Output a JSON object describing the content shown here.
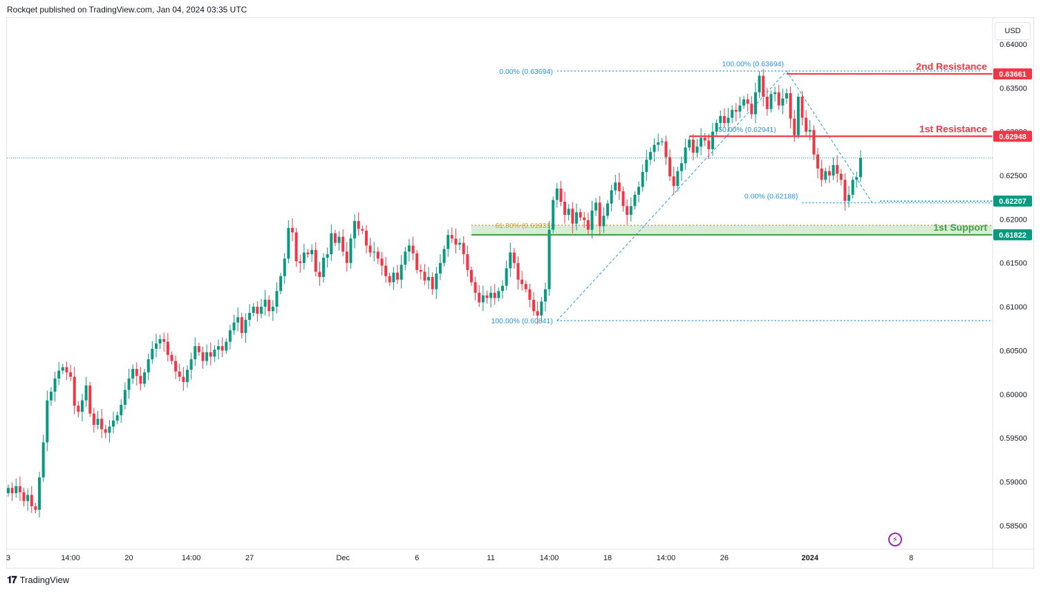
{
  "header": {
    "publisher_text": "Rockqet published on TradingView.com, Jan 04, 2024 03:35 UTC"
  },
  "currency_button": "USD",
  "footer": {
    "brand": "TradingView",
    "logo_glyph": "𝟏𝟕"
  },
  "chart_data": {
    "type": "candlestick",
    "ylim": [
      0.5823,
      0.643
    ],
    "y_ticks": [
      "0.64000",
      "0.63500",
      "0.63000",
      "0.62500",
      "0.62000",
      "0.61500",
      "0.61000",
      "0.60500",
      "0.60000",
      "0.59500",
      "0.59000",
      "0.58500"
    ],
    "y_tick_values": [
      0.64,
      0.635,
      0.63,
      0.625,
      0.62,
      0.615,
      0.61,
      0.605,
      0.6,
      0.595,
      0.59,
      0.585
    ],
    "x_ticks": [
      {
        "label": "3",
        "i": 0
      },
      {
        "label": "14:00",
        "i": 16
      },
      {
        "label": "20",
        "i": 31
      },
      {
        "label": "14:00",
        "i": 47
      },
      {
        "label": "27",
        "i": 62
      },
      {
        "label": "Dec",
        "i": 86
      },
      {
        "label": "6",
        "i": 105
      },
      {
        "label": "11",
        "i": 124
      },
      {
        "label": "14:00",
        "i": 139
      },
      {
        "label": "18",
        "i": 154
      },
      {
        "label": "14:00",
        "i": 169
      },
      {
        "label": "26",
        "i": 184
      },
      {
        "label": "2024",
        "i": 206
      },
      {
        "label": "8",
        "i": 232
      }
    ],
    "closes": [
      0.5893,
      0.5887,
      0.5895,
      0.5888,
      0.5878,
      0.5885,
      0.5872,
      0.5868,
      0.5905,
      0.5945,
      0.5993,
      0.6003,
      0.6018,
      0.6027,
      0.6031,
      0.6025,
      0.602,
      0.5987,
      0.598,
      0.5993,
      0.601,
      0.5978,
      0.5965,
      0.5972,
      0.596,
      0.5956,
      0.5963,
      0.597,
      0.5976,
      0.5988,
      0.6005,
      0.6018,
      0.6029,
      0.6021,
      0.6012,
      0.6025,
      0.604,
      0.6052,
      0.6058,
      0.6063,
      0.606,
      0.6045,
      0.6038,
      0.6026,
      0.602,
      0.6014,
      0.6028,
      0.604,
      0.6055,
      0.6048,
      0.6038,
      0.6048,
      0.6043,
      0.6051,
      0.6055,
      0.605,
      0.606,
      0.6073,
      0.6082,
      0.6088,
      0.607,
      0.6085,
      0.6093,
      0.61,
      0.6092,
      0.61,
      0.6108,
      0.6095,
      0.61,
      0.6118,
      0.6135,
      0.6155,
      0.619,
      0.6185,
      0.6152,
      0.615,
      0.6162,
      0.616,
      0.6165,
      0.614,
      0.6134,
      0.6156,
      0.616,
      0.6184,
      0.6173,
      0.618,
      0.6163,
      0.615,
      0.6178,
      0.6198,
      0.6189,
      0.6187,
      0.617,
      0.6162,
      0.6163,
      0.6155,
      0.6147,
      0.6135,
      0.6128,
      0.6139,
      0.6131,
      0.6148,
      0.6163,
      0.617,
      0.6161,
      0.6142,
      0.614,
      0.613,
      0.6134,
      0.612,
      0.6138,
      0.615,
      0.6166,
      0.6182,
      0.6178,
      0.6171,
      0.6173,
      0.616,
      0.6142,
      0.6128,
      0.6116,
      0.6105,
      0.6113,
      0.611,
      0.6116,
      0.611,
      0.6118,
      0.6124,
      0.6144,
      0.6162,
      0.615,
      0.6131,
      0.6126,
      0.612,
      0.6108,
      0.6095,
      0.609,
      0.6106,
      0.612,
      0.6188,
      0.6222,
      0.6235,
      0.622,
      0.6205,
      0.6212,
      0.6195,
      0.6208,
      0.6202,
      0.6199,
      0.6188,
      0.621,
      0.6219,
      0.6192,
      0.6204,
      0.6218,
      0.6233,
      0.6242,
      0.6232,
      0.6215,
      0.6205,
      0.6215,
      0.6228,
      0.6237,
      0.6254,
      0.6268,
      0.6277,
      0.6285,
      0.6288,
      0.6289,
      0.6271,
      0.6249,
      0.6238,
      0.6255,
      0.6264,
      0.6282,
      0.6291,
      0.6276,
      0.6283,
      0.6293,
      0.629,
      0.628,
      0.63,
      0.631,
      0.6318,
      0.631,
      0.6316,
      0.6325,
      0.6323,
      0.633,
      0.6337,
      0.6332,
      0.632,
      0.6345,
      0.6364,
      0.634,
      0.6326,
      0.6343,
      0.6345,
      0.633,
      0.6338,
      0.6344,
      0.6315,
      0.6296,
      0.634,
      0.6316,
      0.63,
      0.6302,
      0.6274,
      0.6258,
      0.6245,
      0.6255,
      0.625,
      0.6262,
      0.6252,
      0.6245,
      0.6221,
      0.6228,
      0.6245,
      0.6248,
      0.627
    ]
  },
  "price_labels": [
    {
      "text": "0.63661",
      "value": 0.63661,
      "color": "#f23645"
    },
    {
      "text": "0.62948",
      "value": 0.62948,
      "color": "#f23645"
    },
    {
      "text": "0.62207",
      "value": 0.62207,
      "color": "#089981"
    },
    {
      "text": "0.61822",
      "value": 0.61822,
      "color": "#089981"
    }
  ],
  "levels": {
    "resistance_2": {
      "label": "2nd Resistance",
      "value": 0.63661,
      "color": "#f23645"
    },
    "resistance_1": {
      "label": "1st Resistance",
      "value": 0.62948,
      "color": "#f23645"
    },
    "support_1": {
      "label": "1st Support",
      "value": 0.61822,
      "color": "#43a047"
    }
  },
  "fib_levels": [
    {
      "label": "0.00% (0.63694)",
      "value": 0.63694,
      "i_start": 132,
      "i_end": 232
    },
    {
      "label": "100.00% (0.63694)",
      "value": 0.63694,
      "i_start": 196
    },
    {
      "label": "50.00% (0.62941)",
      "value": 0.62941,
      "i_start": 175
    },
    {
      "label": "61.80% (0.61931)",
      "value": 0.61931,
      "i_start": 110,
      "i_end": 232
    },
    {
      "label": "100.00% (0.60841)",
      "value": 0.60841,
      "i_start": 132,
      "i_end": 232
    },
    {
      "label": "0.00% (0.62188)",
      "value": 0.62188,
      "i_start": 190,
      "i_end": 232
    }
  ],
  "colors": {
    "up": "#089981",
    "down": "#f23645",
    "fib": "#2196f3",
    "fib_gold": "#d4a017",
    "support_zone": "#c8e6c9"
  }
}
